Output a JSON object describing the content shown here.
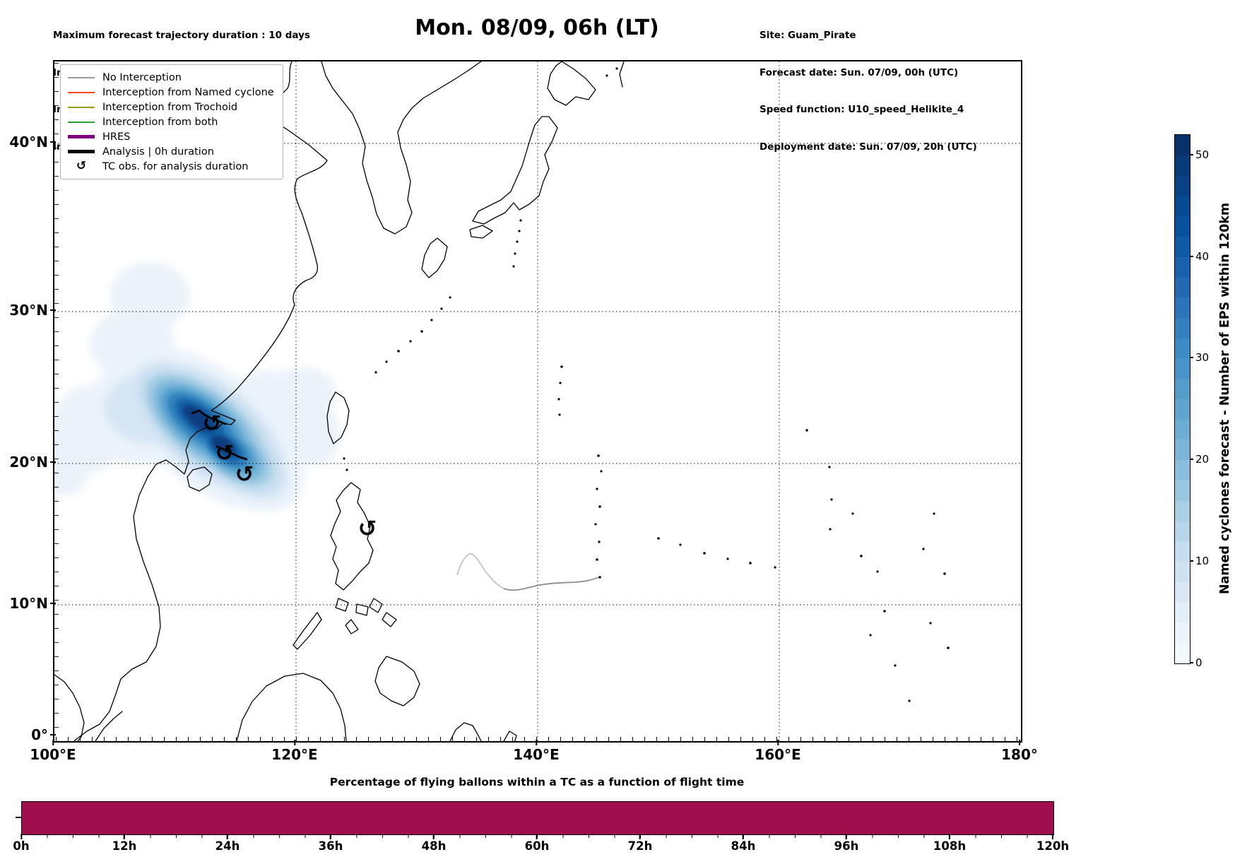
{
  "header": {
    "left_lines": [
      "Maximum forecast trajectory duration : 10 days",
      "Intercept distance: 300km",
      "Intercept RW2 (EPS):  30km/h2",
      "Intercept RW2 (HRES): 30km/h2"
    ],
    "title": "Mon. 08/09, 06h (LT)",
    "right_lines": [
      "Site: Guam_Pirate",
      "Forecast date: Sun. 07/09, 00h (UTC)",
      "Speed function: U10_speed_Helikite_4",
      "Deployment date: Sun. 07/09, 20h (UTC)"
    ]
  },
  "map": {
    "x_tick_labels": [
      "100°E",
      "120°E",
      "140°E",
      "160°E",
      "180°"
    ],
    "y_tick_labels": [
      "40°N",
      "30°N",
      "20°N",
      "10°N",
      "0°"
    ],
    "tc_marker_symbol": "↺",
    "legend": {
      "items": [
        {
          "label": "No Interception",
          "color": "#999999",
          "lw": 2
        },
        {
          "label": "Interception from Named cyclone",
          "color": "#ff4719",
          "lw": 2
        },
        {
          "label": "Interception from Trochoid",
          "color": "#9c9c00",
          "lw": 2
        },
        {
          "label": "Interception from both",
          "color": "#2ca02c",
          "lw": 2
        },
        {
          "label": "HRES",
          "color": "#800080",
          "lw": 5
        },
        {
          "label": "Analysis | 0h duration",
          "color": "#000000",
          "lw": 5
        },
        {
          "label": "TC obs. for analysis duration",
          "symbol": "↺"
        }
      ]
    }
  },
  "colorbar": {
    "label": "Named cyclones forecast - Number of EPS within 120km",
    "tick_labels": [
      "50",
      "40",
      "30",
      "20",
      "10",
      "0"
    ],
    "vmin": 0,
    "vmax": 52,
    "colors_top_to_bottom": [
      "#083069",
      "#083a77",
      "#084285",
      "#084a92",
      "#08529c",
      "#1059a4",
      "#1961ab",
      "#2269b2",
      "#2b74b9",
      "#3480bf",
      "#3d8ac4",
      "#4893c7",
      "#549cca",
      "#60a5ce",
      "#6dadd3",
      "#7cb5d8",
      "#8bbedc",
      "#9ac7e0",
      "#a9cfe5",
      "#b8d5ea",
      "#c6dcef",
      "#d0e2f2",
      "#dae8f5",
      "#e2eef8",
      "#ebf3fb",
      "#f3f8fd"
    ]
  },
  "bottom_chart": {
    "title": "Percentage of flying ballons within a TC as a function of flight time",
    "x_tick_labels": [
      "0h",
      "12h",
      "24h",
      "36h",
      "48h",
      "60h",
      "72h",
      "84h",
      "96h",
      "108h",
      "120h"
    ],
    "bar_color": "#a00f4d"
  },
  "chart_data": [
    {
      "type": "heatmap",
      "title": "Mon. 08/09, 06h (LT)",
      "projection": "Mercator map of the Western North Pacific",
      "x_axis": {
        "tick_labels": [
          "100°E",
          "120°E",
          "140°E",
          "160°E",
          "180°"
        ],
        "range_deg_east": [
          100,
          180
        ]
      },
      "y_axis": {
        "tick_labels": [
          "0°",
          "10°N",
          "20°N",
          "30°N",
          "40°N"
        ],
        "range_deg_north": [
          0,
          44
        ]
      },
      "colorbar": {
        "label": "Named cyclones forecast - Number of EPS within 120km",
        "ticks": [
          0,
          10,
          20,
          30,
          40,
          50
        ],
        "max": 52
      },
      "density_field": "Blue-shaded named-cyclone forecast density; maximum (~50 EPS members within 120km) centred near the South China coast around 112-114°E / 21-23°N (Pearl River delta), lighter shading spreading over roughly 103-126°E and 17-30°N",
      "overlays": [
        {
          "name": "TC observation markers",
          "symbol": "↺",
          "positions_deg": [
            [
              113.0,
              22.7
            ],
            [
              114.1,
              20.7
            ],
            [
              115.7,
              19.2
            ],
            [
              125.9,
              15.4
            ]
          ]
        },
        {
          "name": "No-interception trajectory",
          "color": "gray",
          "approx_path_deg": [
            [
              133.3,
              13.8
            ],
            [
              133.8,
              14.6
            ],
            [
              134.7,
              11.5
            ],
            [
              137.0,
              11.9
            ],
            [
              140.0,
              12.1
            ],
            [
              143.1,
              12.3
            ],
            [
              145.0,
              12.8
            ]
          ]
        },
        {
          "name": "Analysis tracks (0h duration)",
          "color": "black",
          "positions_deg": [
            [
              112.3,
              22.9
            ],
            [
              114.3,
              21.0
            ]
          ]
        }
      ],
      "legend_entries": [
        "No Interception",
        "Interception from Named cyclone",
        "Interception from Trochoid",
        "Interception from both",
        "HRES",
        "Analysis | 0h duration",
        "TC obs. for analysis duration"
      ]
    },
    {
      "type": "bar",
      "title": "Percentage of flying ballons within a TC as a function of flight time",
      "categories": [
        "0h",
        "12h",
        "24h",
        "36h",
        "48h",
        "60h",
        "72h",
        "84h",
        "96h",
        "108h",
        "120h"
      ],
      "values": [
        100,
        100,
        100,
        100,
        100,
        100,
        100,
        100,
        100,
        100,
        100
      ],
      "x_range_hours": [
        0,
        120
      ],
      "ylim": [
        0,
        100
      ],
      "bar_color": "#a00f4d",
      "note": "Solid bar at 100% across the whole 0-120h flight-time range"
    }
  ]
}
